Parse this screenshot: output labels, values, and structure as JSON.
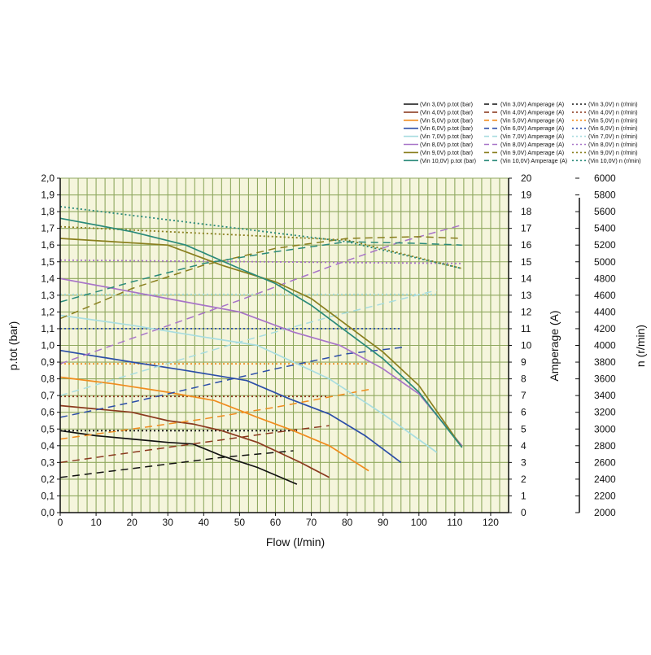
{
  "chart_data": {
    "type": "line",
    "xlabel": "Flow (l/min)",
    "ylabel_left": "p.tot (bar)",
    "ylabel_right1": "Amperage (A)",
    "ylabel_right2": "n (r/min)",
    "xlim": [
      0,
      125
    ],
    "ylim_pressure": [
      0,
      2.0
    ],
    "ylim_amperage": [
      0,
      20
    ],
    "ylim_speed": [
      2000,
      6000
    ],
    "xticks": [
      "0",
      "10",
      "20",
      "30",
      "40",
      "50",
      "60",
      "70",
      "80",
      "90",
      "100",
      "110",
      "120"
    ],
    "pressure_ticks": [
      "0,0",
      "0,1",
      "0,2",
      "0,3",
      "0,4",
      "0,5",
      "0,6",
      "0,7",
      "0,8",
      "0,9",
      "1,0",
      "1,1",
      "1,2",
      "1,3",
      "1,4",
      "1,5",
      "1,6",
      "1,7",
      "1,8",
      "1,9",
      "2,0"
    ],
    "amperage_ticks": [
      "0",
      "1",
      "2",
      "3",
      "4",
      "5",
      "6",
      "7",
      "8",
      "9",
      "10",
      "11",
      "12",
      "13",
      "14",
      "15",
      "16",
      "17",
      "18",
      "19",
      "20"
    ],
    "speed_ticks": [
      "2000",
      "2200",
      "2400",
      "2600",
      "2800",
      "3000",
      "3200",
      "3400",
      "3600",
      "3800",
      "4000",
      "4200",
      "4400",
      "4600",
      "4800",
      "5000",
      "5200",
      "5400",
      "5600",
      "5800",
      "6000"
    ],
    "grid": true,
    "background": "#f5f5dc",
    "grid_color": "#8fa85f",
    "legend_position": "top-right",
    "series": [
      {
        "voltage": "3,0V",
        "color": "#111111",
        "pressure_label": "(Vin 3,0V) p.tot (bar)",
        "amperage_label": "(Vin 3,0V) Amperage (A)",
        "speed_label": "(Vin 3,0V) n (r/min)",
        "pressure": [
          [
            0,
            0.49
          ],
          [
            10,
            0.46
          ],
          [
            20,
            0.44
          ],
          [
            30,
            0.42
          ],
          [
            37,
            0.41
          ],
          [
            45,
            0.34
          ],
          [
            55,
            0.27
          ],
          [
            66,
            0.17
          ]
        ],
        "amperage": [
          [
            0,
            2.1
          ],
          [
            15,
            2.5
          ],
          [
            30,
            2.9
          ],
          [
            45,
            3.3
          ],
          [
            65,
            3.7
          ]
        ],
        "speed": [
          [
            0,
            2980
          ],
          [
            66,
            2980
          ]
        ]
      },
      {
        "voltage": "4,0V",
        "color": "#8b3a1f",
        "pressure_label": "(Vin 4,0V) p.tot (bar)",
        "amperage_label": "(Vin 4,0V) Amperage (A)",
        "speed_label": "(Vin 4,0V) n (r/min)",
        "pressure": [
          [
            0,
            0.64
          ],
          [
            10,
            0.62
          ],
          [
            20,
            0.6
          ],
          [
            30,
            0.55
          ],
          [
            37,
            0.53
          ],
          [
            45,
            0.49
          ],
          [
            55,
            0.42
          ],
          [
            67,
            0.3
          ],
          [
            75,
            0.21
          ]
        ],
        "amperage": [
          [
            0,
            3.0
          ],
          [
            20,
            3.6
          ],
          [
            40,
            4.2
          ],
          [
            60,
            4.8
          ],
          [
            75,
            5.2
          ]
        ],
        "speed": [
          [
            0,
            3390
          ],
          [
            75,
            3390
          ]
        ]
      },
      {
        "voltage": "5,0V",
        "color": "#f08c1e",
        "pressure_label": "(Vin 5,0V) p.tot (bar)",
        "amperage_label": "(Vin 5,0V) Amperage (A)",
        "speed_label": "(Vin 5,0V) n (r/min)",
        "pressure": [
          [
            0,
            0.81
          ],
          [
            15,
            0.77
          ],
          [
            30,
            0.72
          ],
          [
            43,
            0.67
          ],
          [
            55,
            0.57
          ],
          [
            65,
            0.49
          ],
          [
            75,
            0.4
          ],
          [
            86,
            0.25
          ]
        ],
        "amperage": [
          [
            0,
            4.4
          ],
          [
            20,
            5.0
          ],
          [
            40,
            5.6
          ],
          [
            60,
            6.3
          ],
          [
            87,
            7.4
          ]
        ],
        "speed": [
          [
            0,
            3780
          ],
          [
            86,
            3780
          ]
        ]
      },
      {
        "voltage": "6,0V",
        "color": "#2c4ea8",
        "pressure_label": "(Vin 6,0V) p.tot (bar)",
        "amperage_label": "(Vin 6,0V) Amperage (A)",
        "speed_label": "(Vin 6,0V) n (r/min)",
        "pressure": [
          [
            0,
            0.97
          ],
          [
            20,
            0.9
          ],
          [
            35,
            0.85
          ],
          [
            52,
            0.79
          ],
          [
            64,
            0.68
          ],
          [
            75,
            0.59
          ],
          [
            85,
            0.46
          ],
          [
            95,
            0.3
          ]
        ],
        "amperage": [
          [
            0,
            5.7
          ],
          [
            20,
            6.6
          ],
          [
            40,
            7.6
          ],
          [
            60,
            8.6
          ],
          [
            80,
            9.5
          ],
          [
            96,
            9.9
          ]
        ],
        "speed": [
          [
            0,
            4200
          ],
          [
            95,
            4200
          ]
        ]
      },
      {
        "voltage": "7,0V",
        "color": "#a8dde0",
        "pressure_label": "(Vin 7,0V) p.tot (bar)",
        "amperage_label": "(Vin 7,0V) Amperage (A)",
        "speed_label": "(Vin 7,0V) n (r/min)",
        "pressure": [
          [
            0,
            1.18
          ],
          [
            20,
            1.12
          ],
          [
            40,
            1.05
          ],
          [
            55,
            1.0
          ],
          [
            75,
            0.8
          ],
          [
            90,
            0.59
          ],
          [
            105,
            0.36
          ]
        ],
        "amperage": [
          [
            0,
            7.0
          ],
          [
            25,
            8.6
          ],
          [
            50,
            10.2
          ],
          [
            75,
            11.7
          ],
          [
            105,
            13.3
          ]
        ],
        "speed": [
          [
            0,
            4610
          ],
          [
            105,
            4610
          ]
        ]
      },
      {
        "voltage": "8,0V",
        "color": "#a874c8",
        "pressure_label": "(Vin 8,0V) p.tot (bar)",
        "amperage_label": "(Vin 8,0V) Amperage (A)",
        "speed_label": "(Vin 8,0V) n (r/min)",
        "pressure": [
          [
            0,
            1.4
          ],
          [
            15,
            1.34
          ],
          [
            30,
            1.28
          ],
          [
            50,
            1.2
          ],
          [
            65,
            1.08
          ],
          [
            78,
            1.0
          ],
          [
            90,
            0.86
          ],
          [
            100,
            0.71
          ],
          [
            112,
            0.4
          ]
        ],
        "amperage": [
          [
            0,
            8.9
          ],
          [
            25,
            10.8
          ],
          [
            50,
            12.7
          ],
          [
            75,
            14.7
          ],
          [
            95,
            16.2
          ],
          [
            112,
            17.2
          ]
        ],
        "speed": [
          [
            0,
            5020
          ],
          [
            112,
            4980
          ]
        ]
      },
      {
        "voltage": "9,0V",
        "color": "#8a7f1e",
        "pressure_label": "(Vin 9,0V) p.tot (bar)",
        "amperage_label": "(Vin 9,0V) Amperage (A)",
        "speed_label": "(Vin 9,0V) n (r/min)",
        "pressure": [
          [
            0,
            1.64
          ],
          [
            15,
            1.62
          ],
          [
            30,
            1.6
          ],
          [
            45,
            1.48
          ],
          [
            60,
            1.38
          ],
          [
            70,
            1.28
          ],
          [
            80,
            1.12
          ],
          [
            90,
            0.96
          ],
          [
            100,
            0.76
          ],
          [
            112,
            0.39
          ]
        ],
        "amperage": [
          [
            0,
            11.6
          ],
          [
            20,
            13.4
          ],
          [
            40,
            14.8
          ],
          [
            60,
            15.8
          ],
          [
            80,
            16.4
          ],
          [
            100,
            16.5
          ],
          [
            112,
            16.4
          ]
        ],
        "speed": [
          [
            0,
            5420
          ],
          [
            80,
            5260
          ],
          [
            112,
            4920
          ]
        ]
      },
      {
        "voltage": "10,0V",
        "color": "#2a8a7a",
        "pressure_label": "(Vin 10,0V) p.tot (bar)",
        "amperage_label": "(Vin 10,0V) Amperage (A)",
        "speed_label": "(Vin 10,0V) n (r/min)",
        "pressure": [
          [
            0,
            1.76
          ],
          [
            20,
            1.68
          ],
          [
            35,
            1.6
          ],
          [
            50,
            1.46
          ],
          [
            60,
            1.37
          ],
          [
            70,
            1.24
          ],
          [
            80,
            1.08
          ],
          [
            90,
            0.92
          ],
          [
            100,
            0.72
          ],
          [
            112,
            0.39
          ]
        ],
        "amperage": [
          [
            0,
            12.6
          ],
          [
            20,
            13.8
          ],
          [
            40,
            14.9
          ],
          [
            60,
            15.6
          ],
          [
            80,
            16.2
          ],
          [
            100,
            16.1
          ],
          [
            112,
            16.0
          ]
        ],
        "speed": [
          [
            0,
            5660
          ],
          [
            80,
            5240
          ],
          [
            112,
            4920
          ]
        ]
      }
    ]
  }
}
